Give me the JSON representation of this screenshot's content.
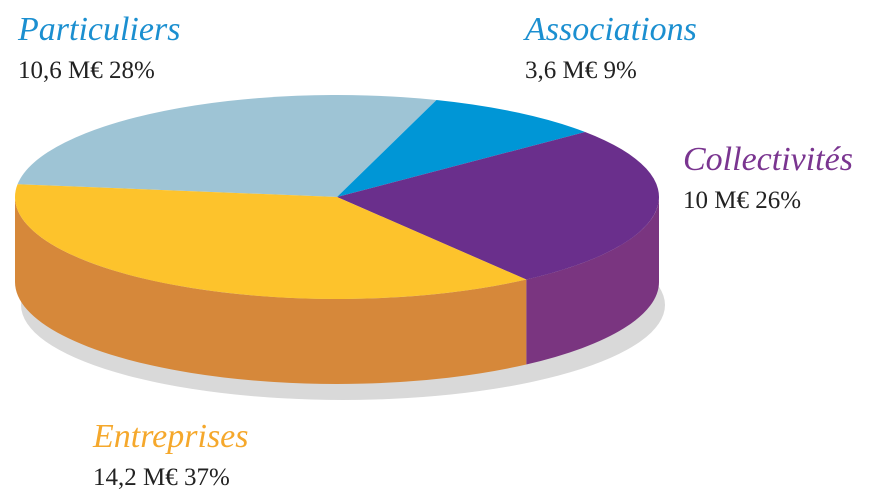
{
  "chart_data": {
    "type": "pie3d",
    "categories": [
      "Particuliers",
      "Associations",
      "Collectivités",
      "Entreprises"
    ],
    "values": [
      28,
      9,
      26,
      37
    ],
    "value_labels": [
      "10,6 M€ 28%",
      "3,6 M€ 9%",
      "10 M€ 26%",
      "14,2 M€ 37%"
    ],
    "colors": [
      "#9ec4d5",
      "#0096d6",
      "#6a2f8c",
      "#fdc32c"
    ],
    "side_colors": [
      "#7fa3b3",
      "#0077ab",
      "#7a3580",
      "#d6883a"
    ],
    "label_colors": [
      "#1b8fd0",
      "#1b8fd0",
      "#7a3590",
      "#f5a82c"
    ]
  }
}
